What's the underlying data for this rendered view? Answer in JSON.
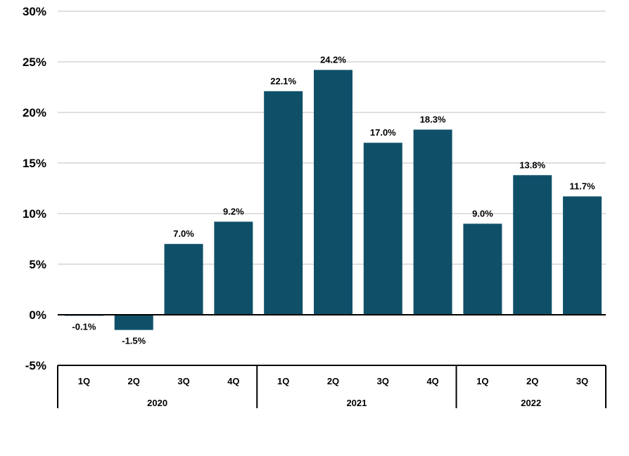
{
  "chart_data": {
    "type": "bar",
    "title": "",
    "xlabel": "",
    "ylabel": "",
    "ylim": [
      -5,
      30
    ],
    "yticks": [
      -5,
      0,
      5,
      10,
      15,
      20,
      25,
      30
    ],
    "ytick_labels": [
      "-5%",
      "0%",
      "5%",
      "10%",
      "15%",
      "20%",
      "25%",
      "30%"
    ],
    "grid": true,
    "legend": "none",
    "bar_color": "#0f5068",
    "categories": [
      "1Q",
      "2Q",
      "3Q",
      "4Q",
      "1Q",
      "2Q",
      "3Q",
      "4Q",
      "1Q",
      "2Q",
      "3Q"
    ],
    "groups": [
      {
        "label": "2020",
        "count": 4
      },
      {
        "label": "2021",
        "count": 4
      },
      {
        "label": "2022",
        "count": 3
      }
    ],
    "values": [
      -0.1,
      -1.5,
      7.0,
      9.2,
      22.1,
      24.2,
      17.0,
      18.3,
      9.0,
      13.8,
      11.7
    ],
    "data_labels": [
      "-0.1%",
      "-1.5%",
      "7.0%",
      "9.2%",
      "22.1%",
      "24.2%",
      "17.0%",
      "18.3%",
      "9.0%",
      "13.8%",
      "11.7%"
    ]
  }
}
